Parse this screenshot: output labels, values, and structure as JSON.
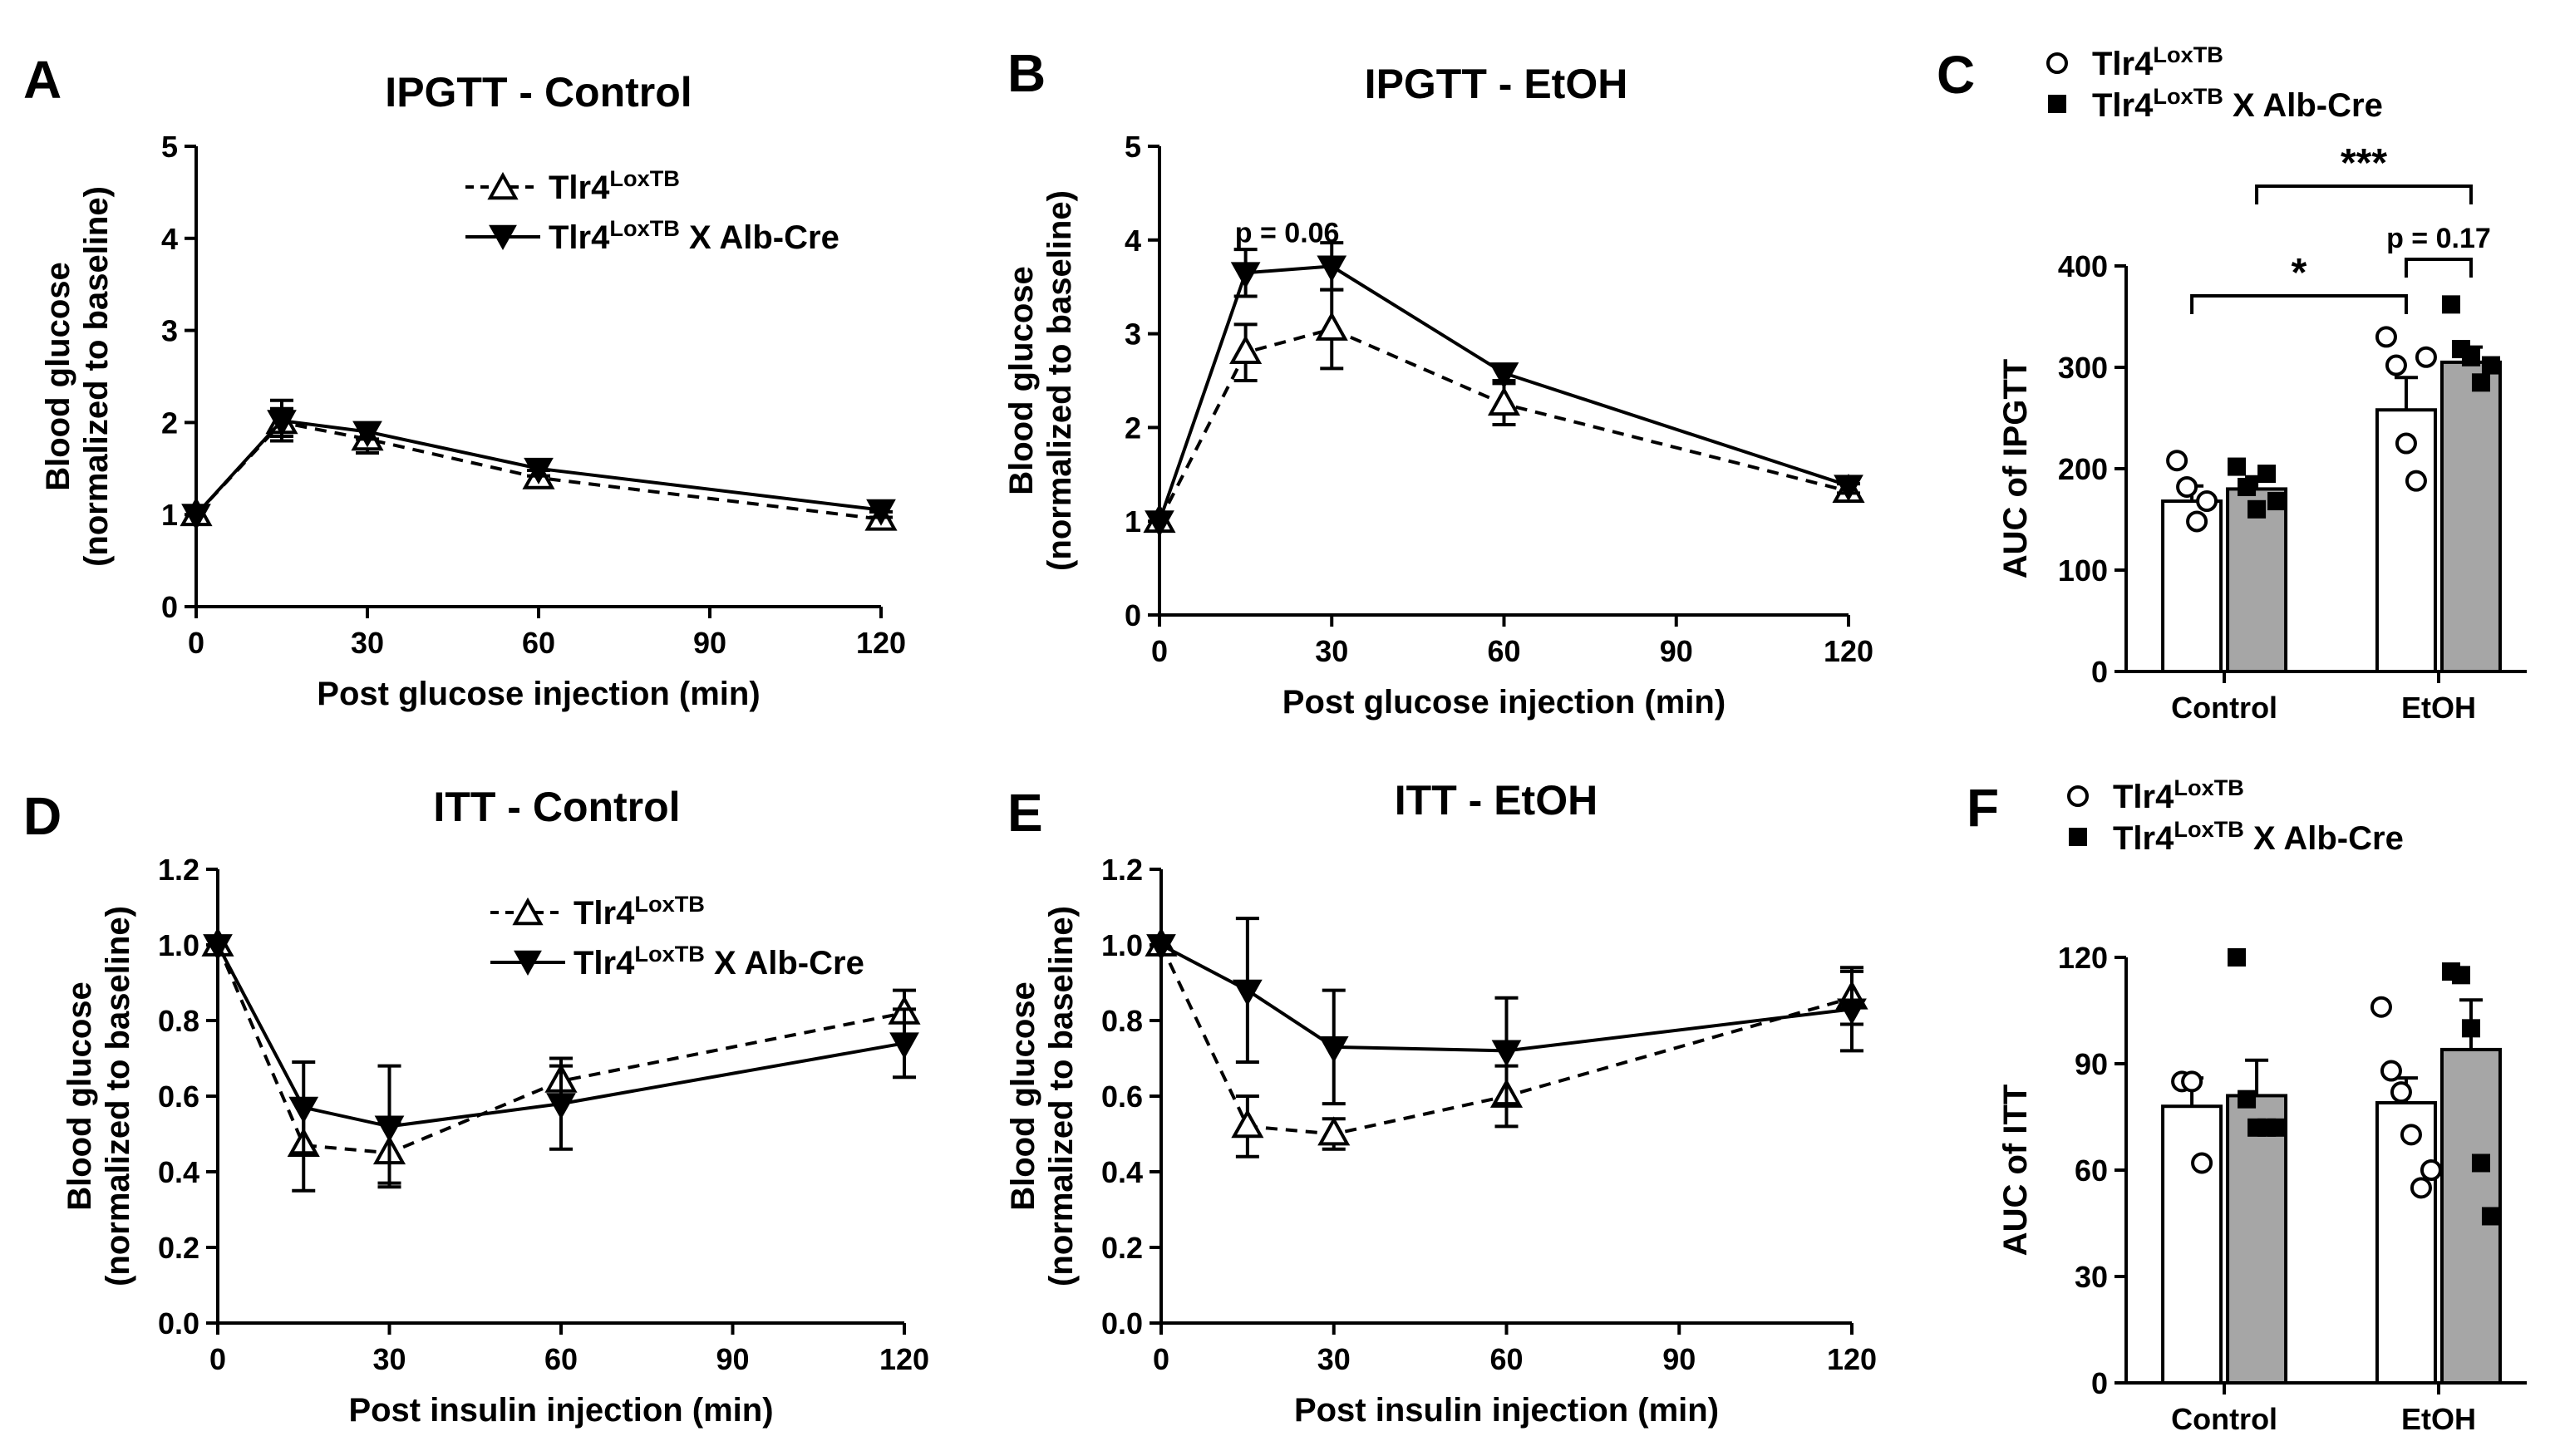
{
  "colors": {
    "bar_ko": "#a6a6a6",
    "bar_wt": "#ffffff",
    "ink": "#000000"
  },
  "legend": {
    "wt_base": "Tlr4",
    "wt_sup": "LoxTB",
    "ko_base": "Tlr4",
    "ko_sup": "LoxTB",
    "ko_suffix": " X Alb-Cre",
    "wt_marker": "open-triangle",
    "ko_marker": "filled-down-triangle",
    "wt_bar_marker": "open-circle",
    "ko_bar_marker": "filled-square"
  },
  "chart_data": [
    {
      "panel": "A",
      "type": "line",
      "title": "IPGTT - Control",
      "xlabel": "Post glucose injection (min)",
      "ylabel": [
        "Blood glucose",
        "(normalized to baseline)"
      ],
      "xlim": [
        0,
        120
      ],
      "ylim": [
        0,
        5
      ],
      "xticks": [
        0,
        30,
        60,
        90,
        120
      ],
      "yticks": [
        0,
        1,
        2,
        3,
        4,
        5
      ],
      "series": [
        {
          "name": "Tlr4LoxTB",
          "style": "dashed",
          "marker": "open-triangle",
          "x": [
            0,
            15,
            30,
            60,
            120
          ],
          "y": [
            1.0,
            2.0,
            1.82,
            1.4,
            0.95
          ],
          "err": [
            0.0,
            0.15,
            0.15,
            0.08,
            0.08
          ]
        },
        {
          "name": "Tlr4LoxTB X Alb-Cre",
          "style": "solid",
          "marker": "filled-down-triangle",
          "x": [
            0,
            15,
            30,
            60,
            120
          ],
          "y": [
            1.0,
            2.02,
            1.9,
            1.5,
            1.05
          ],
          "err": [
            0.0,
            0.22,
            0.08,
            0.08,
            0.08
          ]
        }
      ],
      "annotations": []
    },
    {
      "panel": "B",
      "type": "line",
      "title": "IPGTT - EtOH",
      "xlabel": "Post glucose injection (min)",
      "ylabel": [
        "Blood glucose",
        "(normalized to baseline)"
      ],
      "xlim": [
        0,
        120
      ],
      "ylim": [
        0,
        5
      ],
      "xticks": [
        0,
        30,
        60,
        90,
        120
      ],
      "yticks": [
        0,
        1,
        2,
        3,
        4,
        5
      ],
      "series": [
        {
          "name": "Tlr4LoxTB",
          "style": "dashed",
          "marker": "open-triangle",
          "x": [
            0,
            15,
            30,
            60,
            120
          ],
          "y": [
            1.0,
            2.8,
            3.05,
            2.25,
            1.32
          ],
          "err": [
            0.0,
            0.3,
            0.42,
            0.22,
            0.08
          ]
        },
        {
          "name": "Tlr4LoxTB X Alb-Cre",
          "style": "solid",
          "marker": "filled-down-triangle",
          "x": [
            0,
            15,
            30,
            60,
            120
          ],
          "y": [
            1.0,
            3.65,
            3.72,
            2.58,
            1.38
          ],
          "err": [
            0.0,
            0.25,
            0.25,
            0.08,
            0.08
          ]
        }
      ],
      "annotations": [
        {
          "text": "p = 0.06",
          "x": 15,
          "y": 4.1
        }
      ]
    },
    {
      "panel": "C",
      "type": "bar",
      "title": "",
      "xlabel": "",
      "ylabel": [
        "AUC of IPGTT"
      ],
      "categories": [
        "Control",
        "EtOH"
      ],
      "ylim": [
        0,
        400
      ],
      "yticks": [
        0,
        100,
        200,
        300,
        400
      ],
      "series": [
        {
          "name": "Tlr4LoxTB",
          "marker": "open-circle",
          "fill": "#ffffff",
          "values": [
            168,
            258
          ],
          "err": [
            15,
            32
          ],
          "points": [
            [
              208,
              182,
              148,
              168
            ],
            [
              330,
              302,
              225,
              188,
              310
            ]
          ]
        },
        {
          "name": "Tlr4LoxTB X Alb-Cre",
          "marker": "filled-square",
          "fill": "#a6a6a6",
          "values": [
            180,
            305
          ],
          "err": [
            12,
            15
          ],
          "points": [
            [
              202,
              182,
              160,
              195,
              168
            ],
            [
              362,
              318,
              310,
              285,
              302
            ]
          ]
        }
      ],
      "significance": [
        {
          "text": "*",
          "from": "Control-Tlr4LoxTB",
          "to": "EtOH-Tlr4LoxTB"
        },
        {
          "text": "***",
          "from": "Control-Tlr4LoxTB X Alb-Cre",
          "to": "EtOH-Tlr4LoxTB X Alb-Cre"
        },
        {
          "text": "p = 0.17",
          "from": "EtOH-Tlr4LoxTB",
          "to": "EtOH-Tlr4LoxTB X Alb-Cre"
        }
      ]
    },
    {
      "panel": "D",
      "type": "line",
      "title": "ITT - Control",
      "xlabel": "Post insulin injection (min)",
      "ylabel": [
        "Blood glucose",
        "(normalized to baseline)"
      ],
      "xlim": [
        0,
        120
      ],
      "ylim": [
        0,
        1.2
      ],
      "xticks": [
        0,
        30,
        60,
        90,
        120
      ],
      "yticks": [
        0.0,
        0.2,
        0.4,
        0.6,
        0.8,
        1.0,
        1.2
      ],
      "series": [
        {
          "name": "Tlr4LoxTB",
          "style": "dashed",
          "marker": "open-triangle",
          "x": [
            0,
            15,
            30,
            60,
            120
          ],
          "y": [
            1.0,
            0.47,
            0.45,
            0.64,
            0.82
          ],
          "err": [
            0.0,
            0.12,
            0.08,
            0.04,
            0.06
          ]
        },
        {
          "name": "Tlr4LoxTB X Alb-Cre",
          "style": "solid",
          "marker": "filled-down-triangle",
          "x": [
            0,
            15,
            30,
            60,
            120
          ],
          "y": [
            1.0,
            0.57,
            0.52,
            0.58,
            0.74
          ],
          "err": [
            0.0,
            0.12,
            0.16,
            0.12,
            0.09
          ]
        }
      ],
      "annotations": []
    },
    {
      "panel": "E",
      "type": "line",
      "title": "ITT - EtOH",
      "xlabel": "Post insulin injection (min)",
      "ylabel": [
        "Blood glucose",
        "(normalized to baseline)"
      ],
      "xlim": [
        0,
        120
      ],
      "ylim": [
        0,
        1.2
      ],
      "xticks": [
        0,
        30,
        60,
        90,
        120
      ],
      "yticks": [
        0.0,
        0.2,
        0.4,
        0.6,
        0.8,
        1.0,
        1.2
      ],
      "series": [
        {
          "name": "Tlr4LoxTB",
          "style": "dashed",
          "marker": "open-triangle",
          "x": [
            0,
            15,
            30,
            60,
            120
          ],
          "y": [
            1.0,
            0.52,
            0.5,
            0.6,
            0.86
          ],
          "err": [
            0.0,
            0.08,
            0.04,
            0.08,
            0.07
          ]
        },
        {
          "name": "Tlr4LoxTB X Alb-Cre",
          "style": "solid",
          "marker": "filled-down-triangle",
          "x": [
            0,
            15,
            30,
            60,
            120
          ],
          "y": [
            1.0,
            0.88,
            0.73,
            0.72,
            0.83
          ],
          "err": [
            0.0,
            0.19,
            0.15,
            0.14,
            0.11
          ]
        }
      ],
      "annotations": []
    },
    {
      "panel": "F",
      "type": "bar",
      "title": "",
      "xlabel": "",
      "ylabel": [
        "AUC of ITT"
      ],
      "categories": [
        "Control",
        "EtOH"
      ],
      "ylim": [
        0,
        120
      ],
      "yticks": [
        0,
        30,
        60,
        90,
        120
      ],
      "series": [
        {
          "name": "Tlr4LoxTB",
          "marker": "open-circle",
          "fill": "#ffffff",
          "values": [
            78,
            79
          ],
          "err": [
            8,
            7
          ],
          "points": [
            [
              85,
              85,
              62
            ],
            [
              106,
              88,
              82,
              70,
              55,
              60
            ]
          ]
        },
        {
          "name": "Tlr4LoxTB X Alb-Cre",
          "marker": "filled-square",
          "fill": "#a6a6a6",
          "values": [
            81,
            94
          ],
          "err": [
            10,
            14
          ],
          "points": [
            [
              120,
              80,
              72,
              72,
              72
            ],
            [
              116,
              115,
              100,
              62,
              47
            ]
          ]
        }
      ],
      "significance": []
    }
  ]
}
